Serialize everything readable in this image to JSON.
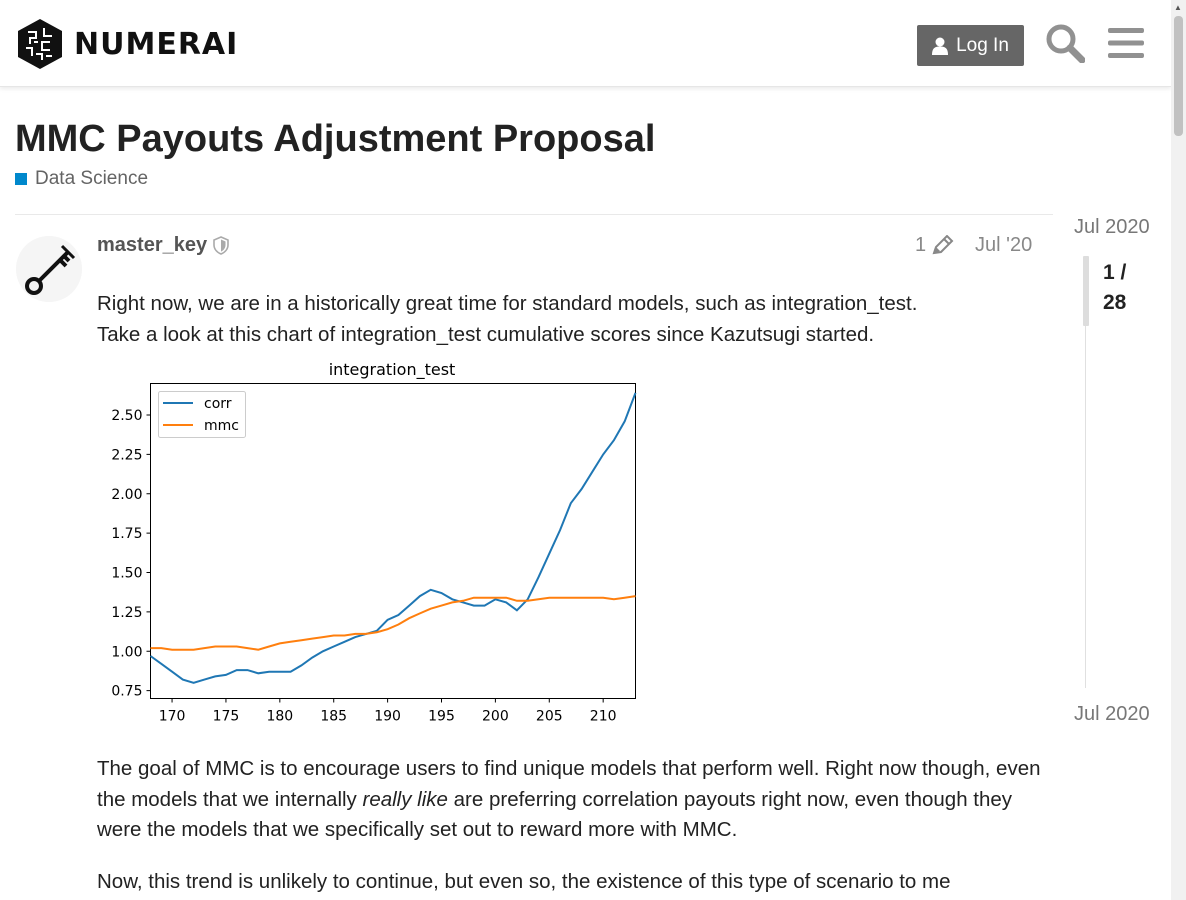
{
  "header": {
    "brand": "NUMERAI",
    "login_label": "Log In",
    "icons": [
      "numerai-logo-icon",
      "user-icon",
      "search-icon",
      "menu-icon"
    ]
  },
  "topic": {
    "title": "MMC Payouts Adjustment Proposal",
    "category": "Data Science",
    "category_color": "#0088cc"
  },
  "post": {
    "username": "master_key",
    "edit_count": "1",
    "date": "Jul '20",
    "paragraph1_line1": "Right now, we are in a historically great time for standard models, such as integration_test.",
    "paragraph1_line2": "Take a look at this chart of integration_test cumulative scores since Kazutsugi started.",
    "paragraph2_part1": "The goal of MMC is to encourage users to find unique models that perform well. Right now though, even the models that we internally ",
    "paragraph2_em": "really like",
    "paragraph2_part2": " are preferring correlation payouts right now, even though they were the models that we specifically set out to reward more with MMC.",
    "paragraph3": "Now, this trend is unlikely to continue, but even so, the existence of this type of scenario to me"
  },
  "timeline": {
    "start": "Jul 2020",
    "end": "Jul 2020",
    "position": "1 /",
    "total": "28"
  },
  "chart_data": {
    "type": "line",
    "title": "integration_test",
    "xlabel": "",
    "ylabel": "",
    "xlim": [
      168,
      213
    ],
    "ylim": [
      0.7,
      2.7
    ],
    "xticks": [
      "170",
      "175",
      "180",
      "185",
      "190",
      "195",
      "200",
      "205",
      "210"
    ],
    "yticks": [
      "0.75",
      "1.00",
      "1.25",
      "1.50",
      "1.75",
      "2.00",
      "2.25",
      "2.50"
    ],
    "legend_position": "top-left",
    "grid": false,
    "series": [
      {
        "name": "corr",
        "color": "#1f77b4",
        "x": [
          168,
          169,
          170,
          171,
          172,
          173,
          174,
          175,
          176,
          177,
          178,
          179,
          180,
          181,
          182,
          183,
          184,
          185,
          186,
          187,
          188,
          189,
          190,
          191,
          192,
          193,
          194,
          195,
          196,
          197,
          198,
          199,
          200,
          201,
          202,
          203,
          204,
          205,
          206,
          207,
          208,
          209,
          210,
          211,
          212,
          213
        ],
        "values": [
          0.97,
          0.92,
          0.87,
          0.82,
          0.8,
          0.82,
          0.84,
          0.85,
          0.88,
          0.88,
          0.86,
          0.87,
          0.87,
          0.87,
          0.91,
          0.96,
          1.0,
          1.03,
          1.06,
          1.09,
          1.11,
          1.13,
          1.2,
          1.23,
          1.29,
          1.35,
          1.39,
          1.37,
          1.33,
          1.31,
          1.29,
          1.29,
          1.33,
          1.31,
          1.26,
          1.33,
          1.47,
          1.62,
          1.77,
          1.94,
          2.03,
          2.14,
          2.25,
          2.34,
          2.46,
          2.64
        ]
      },
      {
        "name": "mmc",
        "color": "#ff7f0e",
        "x": [
          168,
          169,
          170,
          171,
          172,
          173,
          174,
          175,
          176,
          177,
          178,
          179,
          180,
          181,
          182,
          183,
          184,
          185,
          186,
          187,
          188,
          189,
          190,
          191,
          192,
          193,
          194,
          195,
          196,
          197,
          198,
          199,
          200,
          201,
          202,
          203,
          204,
          205,
          206,
          207,
          208,
          209,
          210,
          211,
          212,
          213
        ],
        "values": [
          1.02,
          1.02,
          1.01,
          1.01,
          1.01,
          1.02,
          1.03,
          1.03,
          1.03,
          1.02,
          1.01,
          1.03,
          1.05,
          1.06,
          1.07,
          1.08,
          1.09,
          1.1,
          1.1,
          1.11,
          1.11,
          1.12,
          1.14,
          1.17,
          1.21,
          1.24,
          1.27,
          1.29,
          1.31,
          1.32,
          1.34,
          1.34,
          1.34,
          1.34,
          1.32,
          1.32,
          1.33,
          1.34,
          1.34,
          1.34,
          1.34,
          1.34,
          1.34,
          1.33,
          1.34,
          1.35
        ]
      }
    ]
  }
}
